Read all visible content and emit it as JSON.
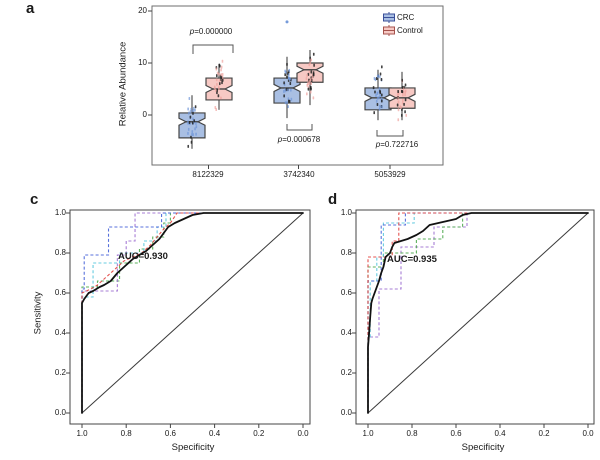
{
  "colors": {
    "background": "#ffffff",
    "panel_border": "#6e6e6e",
    "roc_border": "#444444",
    "box_border": "#454545",
    "mean_curve": "#121212",
    "diagonal": "#3a3a3a",
    "dark_point": "#222222",
    "bracket": "#555555"
  },
  "chart_data": [
    {
      "panel_label": "a",
      "type": "boxplot",
      "ylabel": "Relative Abundance",
      "y_tick_labels": [
        "0",
        "10",
        "20"
      ],
      "y_tick_values": [
        0,
        10,
        20
      ],
      "categories": [
        "8122329",
        "3742340",
        "5053929"
      ],
      "groups": [
        "CRC",
        "Control"
      ],
      "legend": [
        {
          "label": "CRC",
          "fill": "#a9bfe3",
          "border": "#3a4f99",
          "point": "#6f96d8"
        },
        {
          "label": "Control",
          "fill": "#f7c9c4",
          "border": "#a5524c",
          "point": "#f0a39e"
        }
      ],
      "boxes": [
        {
          "category": "8122329",
          "group": "CRC",
          "q1": -4.4,
          "median": -1.3,
          "q3": 0.4,
          "whisker_low": -6.5,
          "whisker_high": 3.8,
          "points_min": -6.7,
          "points_max": 3.8,
          "outliers": []
        },
        {
          "category": "8122329",
          "group": "Control",
          "q1": 2.9,
          "median": 5.0,
          "q3": 7.1,
          "whisker_low": 1.0,
          "whisker_high": 9.8,
          "points_min": 0.8,
          "points_max": 11.5,
          "outliers": []
        },
        {
          "category": "3742340",
          "group": "CRC",
          "q1": 2.3,
          "median": 5.2,
          "q3": 7.1,
          "whisker_low": -0.6,
          "whisker_high": 11.2,
          "points_min": -1.0,
          "points_max": 11.6,
          "outliers": [
            17.9
          ]
        },
        {
          "category": "3742340",
          "group": "Control",
          "q1": 6.3,
          "median": 8.7,
          "q3": 10.0,
          "whisker_low": 1.9,
          "whisker_high": 12.5,
          "points_min": 1.9,
          "points_max": 12.5,
          "outliers": []
        },
        {
          "category": "5053929",
          "group": "CRC",
          "q1": 1.0,
          "median": 3.3,
          "q3": 5.2,
          "whisker_low": -1.0,
          "whisker_high": 8.7,
          "points_min": -1.3,
          "points_max": 9.5,
          "outliers": []
        },
        {
          "category": "5053929",
          "group": "Control",
          "q1": 1.3,
          "median": 3.3,
          "q3": 5.2,
          "whisker_low": -1.0,
          "whisker_high": 8.3,
          "points_min": -1.3,
          "points_max": 8.5,
          "outliers": []
        }
      ],
      "p_values": [
        {
          "category": "8122329",
          "label": "p=0.000000",
          "position": "above"
        },
        {
          "category": "3742340",
          "label": "p=0.000678",
          "position": "below"
        },
        {
          "category": "5053929",
          "label": "p=0.722716",
          "position": "below"
        }
      ]
    },
    {
      "panel_label": "c",
      "type": "line",
      "subtype": "roc",
      "xlabel": "Specificity",
      "ylabel": "Sensitivity",
      "auc_label": "AUC=0.930",
      "x_tick_labels": [
        "1.0",
        "0.8",
        "0.6",
        "0.4",
        "0.2",
        "0.0"
      ],
      "y_tick_labels": [
        "0.0",
        "0.2",
        "0.4",
        "0.6",
        "0.8",
        "1.0"
      ],
      "diagonal": true,
      "mean_curve": [
        [
          1,
          0
        ],
        [
          1,
          0.55
        ],
        [
          0.99,
          0.57
        ],
        [
          0.97,
          0.6
        ],
        [
          0.95,
          0.61
        ],
        [
          0.92,
          0.63
        ],
        [
          0.9,
          0.64
        ],
        [
          0.87,
          0.66
        ],
        [
          0.84,
          0.7
        ],
        [
          0.8,
          0.74
        ],
        [
          0.77,
          0.77
        ],
        [
          0.74,
          0.79
        ],
        [
          0.71,
          0.81
        ],
        [
          0.68,
          0.84
        ],
        [
          0.65,
          0.87
        ],
        [
          0.63,
          0.9
        ],
        [
          0.61,
          0.93
        ],
        [
          0.58,
          0.95
        ],
        [
          0.54,
          0.97
        ],
        [
          0.5,
          0.99
        ],
        [
          0.45,
          1
        ],
        [
          0,
          1
        ]
      ],
      "fold_curves": [
        {
          "color": "#4ca94c",
          "points": [
            [
              1,
              0
            ],
            [
              1,
              0.63
            ],
            [
              0.93,
              0.63
            ],
            [
              0.93,
              0.66
            ],
            [
              0.83,
              0.66
            ],
            [
              0.83,
              0.75
            ],
            [
              0.74,
              0.75
            ],
            [
              0.74,
              0.82
            ],
            [
              0.68,
              0.82
            ],
            [
              0.68,
              0.88
            ],
            [
              0.63,
              0.88
            ],
            [
              0.63,
              0.95
            ],
            [
              0.6,
              0.95
            ],
            [
              0.6,
              1
            ],
            [
              0,
              1
            ]
          ]
        },
        {
          "color": "#58c7dd",
          "points": [
            [
              1,
              0
            ],
            [
              1,
              0.58
            ],
            [
              0.95,
              0.58
            ],
            [
              0.95,
              0.75
            ],
            [
              0.83,
              0.75
            ],
            [
              0.83,
              0.8
            ],
            [
              0.72,
              0.8
            ],
            [
              0.72,
              0.86
            ],
            [
              0.66,
              0.86
            ],
            [
              0.66,
              0.93
            ],
            [
              0.62,
              0.93
            ],
            [
              0.62,
              1
            ],
            [
              0,
              1
            ]
          ]
        },
        {
          "color": "#9d6fd0",
          "points": [
            [
              1,
              0
            ],
            [
              1,
              0.61
            ],
            [
              0.84,
              0.61
            ],
            [
              0.84,
              0.79
            ],
            [
              0.8,
              0.79
            ],
            [
              0.8,
              0.86
            ],
            [
              0.76,
              0.86
            ],
            [
              0.76,
              1
            ],
            [
              0,
              1
            ]
          ]
        },
        {
          "color": "#4663d8",
          "points": [
            [
              1,
              0
            ],
            [
              1,
              0.62
            ],
            [
              0.99,
              0.62
            ],
            [
              0.99,
              0.79
            ],
            [
              0.88,
              0.79
            ],
            [
              0.88,
              0.93
            ],
            [
              0.64,
              0.93
            ],
            [
              0.64,
              1
            ],
            [
              0,
              1
            ]
          ]
        },
        {
          "color": "#e2413e",
          "points": [
            [
              1,
              0
            ],
            [
              1,
              0.6
            ],
            [
              0.96,
              0.62
            ],
            [
              0.93,
              0.64
            ],
            [
              0.89,
              0.68
            ],
            [
              0.85,
              0.72
            ],
            [
              0.81,
              0.76
            ],
            [
              0.77,
              0.78
            ],
            [
              0.73,
              0.8
            ],
            [
              0.69,
              0.84
            ],
            [
              0.66,
              0.88
            ],
            [
              0.63,
              0.92
            ],
            [
              0.6,
              0.95
            ],
            [
              0.57,
              1
            ],
            [
              0,
              1
            ]
          ]
        }
      ]
    },
    {
      "panel_label": "d",
      "type": "line",
      "subtype": "roc",
      "xlabel": "Specificity",
      "ylabel": "",
      "auc_label": "AUC=0.935",
      "x_tick_labels": [
        "1.0",
        "0.8",
        "0.6",
        "0.4",
        "0.2",
        "0.0"
      ],
      "y_tick_labels": [
        "0.0",
        "0.2",
        "0.4",
        "0.6",
        "0.8",
        "1.0"
      ],
      "diagonal": true,
      "mean_curve": [
        [
          1,
          0
        ],
        [
          1,
          0.33
        ],
        [
          0.995,
          0.4
        ],
        [
          0.99,
          0.48
        ],
        [
          0.985,
          0.55
        ],
        [
          0.98,
          0.57
        ],
        [
          0.97,
          0.6
        ],
        [
          0.96,
          0.63
        ],
        [
          0.95,
          0.66
        ],
        [
          0.94,
          0.7
        ],
        [
          0.93,
          0.73
        ],
        [
          0.92,
          0.78
        ],
        [
          0.9,
          0.8
        ],
        [
          0.89,
          0.83
        ],
        [
          0.88,
          0.85
        ],
        [
          0.85,
          0.86
        ],
        [
          0.82,
          0.87
        ],
        [
          0.78,
          0.89
        ],
        [
          0.75,
          0.91
        ],
        [
          0.72,
          0.94
        ],
        [
          0.68,
          0.95
        ],
        [
          0.64,
          0.96
        ],
        [
          0.6,
          0.97
        ],
        [
          0.57,
          0.99
        ],
        [
          0.53,
          1
        ],
        [
          0,
          1
        ]
      ],
      "fold_curves": [
        {
          "color": "#9d6fd0",
          "points": [
            [
              1,
              0
            ],
            [
              1,
              0.38
            ],
            [
              0.95,
              0.38
            ],
            [
              0.95,
              0.62
            ],
            [
              0.85,
              0.62
            ],
            [
              0.85,
              0.83
            ],
            [
              0.7,
              0.83
            ],
            [
              0.7,
              0.93
            ],
            [
              0.55,
              0.93
            ],
            [
              0.55,
              1
            ],
            [
              0,
              1
            ]
          ]
        },
        {
          "color": "#4ca94c",
          "points": [
            [
              1,
              0
            ],
            [
              1,
              0.73
            ],
            [
              0.93,
              0.73
            ],
            [
              0.93,
              0.8
            ],
            [
              0.78,
              0.8
            ],
            [
              0.78,
              0.87
            ],
            [
              0.66,
              0.87
            ],
            [
              0.66,
              0.93
            ],
            [
              0.57,
              0.93
            ],
            [
              0.57,
              1
            ],
            [
              0,
              1
            ]
          ]
        },
        {
          "color": "#58c7dd",
          "points": [
            [
              1,
              0
            ],
            [
              1,
              0.38
            ],
            [
              0.99,
              0.38
            ],
            [
              0.99,
              0.66
            ],
            [
              0.96,
              0.66
            ],
            [
              0.96,
              0.78
            ],
            [
              0.93,
              0.78
            ],
            [
              0.93,
              0.95
            ],
            [
              0.79,
              0.95
            ],
            [
              0.79,
              1
            ],
            [
              0,
              1
            ]
          ]
        },
        {
          "color": "#4663d8",
          "points": [
            [
              1,
              0
            ],
            [
              1,
              0.66
            ],
            [
              0.94,
              0.66
            ],
            [
              0.94,
              0.94
            ],
            [
              0.83,
              0.94
            ],
            [
              0.83,
              1
            ],
            [
              0,
              1
            ]
          ]
        },
        {
          "color": "#e2413e",
          "points": [
            [
              1,
              0
            ],
            [
              1,
              0.78
            ],
            [
              0.89,
              0.78
            ],
            [
              0.89,
              0.86
            ],
            [
              0.86,
              0.86
            ],
            [
              0.86,
              1
            ],
            [
              0,
              1
            ]
          ]
        }
      ]
    }
  ]
}
